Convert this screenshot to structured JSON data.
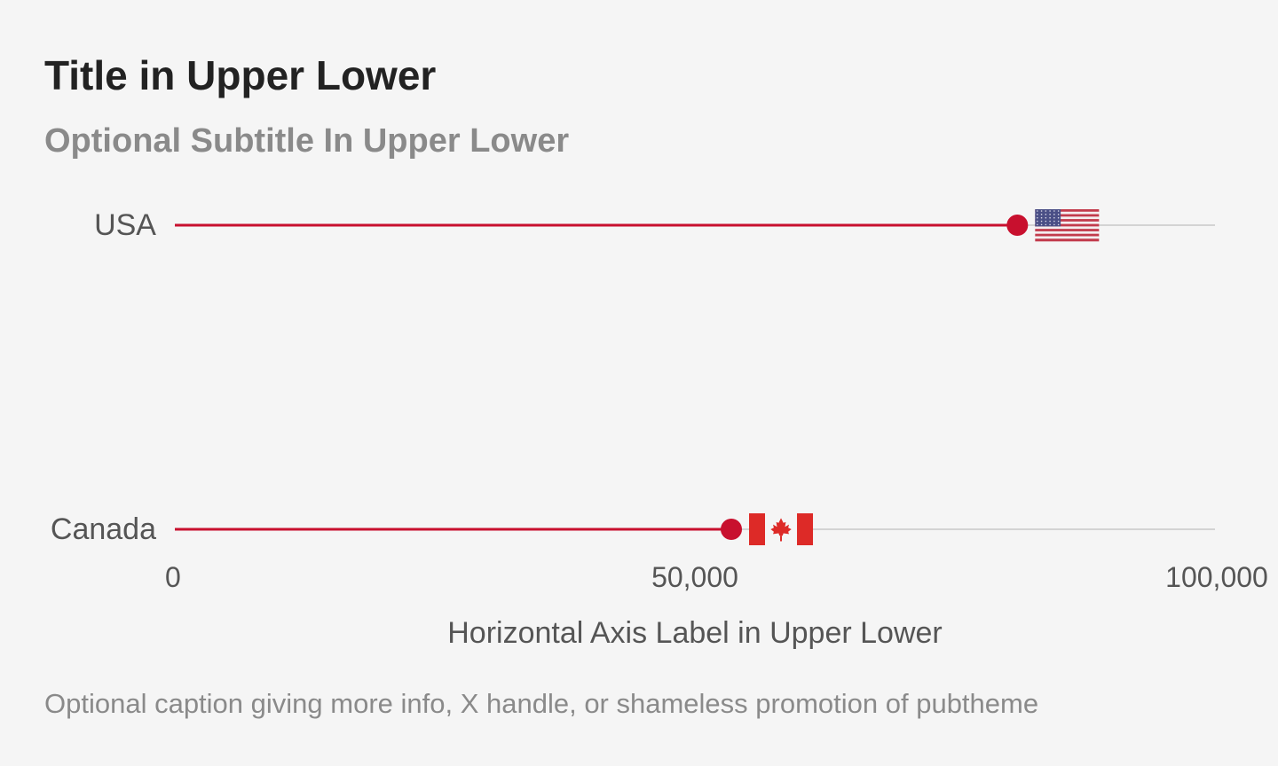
{
  "title": "Title in Upper Lower",
  "subtitle": "Optional Subtitle In Upper Lower",
  "caption": "Optional caption giving more info, X handle, or shameless promotion of pubtheme",
  "colors": {
    "accent": "#c8102e",
    "track": "#d3d3d3",
    "text": "#555555"
  },
  "chart_data": {
    "type": "bar",
    "style": "lollipop",
    "categories": [
      "USA",
      "Canada"
    ],
    "values": [
      81000,
      53500
    ],
    "flags": [
      "us-flag-icon",
      "canada-flag-icon"
    ],
    "xlabel": "Horizontal Axis Label in Upper Lower",
    "ylabel": "",
    "xlim": [
      0,
      100000
    ],
    "ticks": [
      0,
      50000,
      100000
    ],
    "tick_labels": [
      "0",
      "50,000",
      "100,000"
    ],
    "grid": false,
    "legend": "none"
  }
}
